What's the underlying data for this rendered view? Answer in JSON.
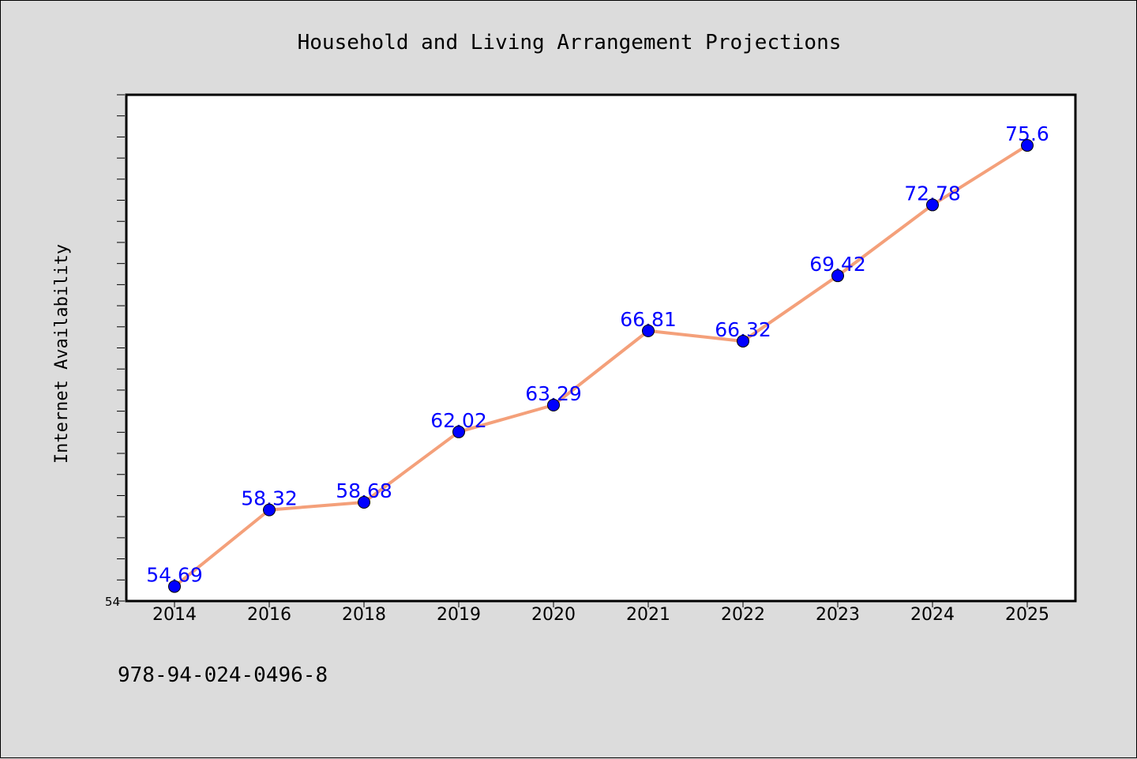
{
  "chart_data": {
    "type": "line",
    "title": "Household and Living Arrangement Projections",
    "xlabel": "",
    "ylabel": "Internet Availability",
    "categories": [
      "2014",
      "2016",
      "2018",
      "2019",
      "2020",
      "2021",
      "2022",
      "2023",
      "2024",
      "2025"
    ],
    "series": [
      {
        "values": [
          54.69,
          58.32,
          58.68,
          62.02,
          63.29,
          66.81,
          66.32,
          69.42,
          72.78,
          75.6
        ],
        "labels": [
          "54.69",
          "58.32",
          "58.68",
          "62.02",
          "63.29",
          "66.81",
          "66.32",
          "69.42",
          "72.78",
          "75.6"
        ],
        "line_color": "#f4a07a",
        "marker_color": "#0000ff"
      }
    ],
    "ylim": [
      54,
      78
    ],
    "y_tick_labels": [
      "54"
    ],
    "grid": false,
    "legend": "none"
  },
  "footer": {
    "isbn": "978-94-024-0496-8"
  },
  "colors": {
    "background": "#dcdcdc",
    "plot_background": "#ffffff",
    "line": "#f4a07a",
    "marker": "#0000ff",
    "data_label": "#0000ff"
  }
}
